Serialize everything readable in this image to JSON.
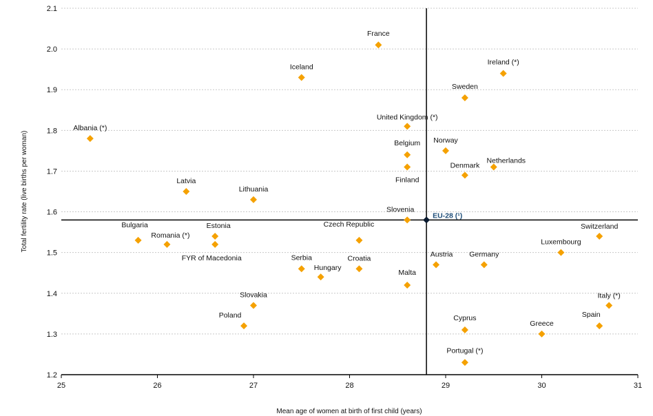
{
  "chart_data": {
    "type": "scatter",
    "title": "",
    "xlabel": "Mean age of women at birth of first child (years)",
    "ylabel": "Total fertility rate (live births per woman)",
    "xlim": [
      25,
      31
    ],
    "ylim": [
      1.2,
      2.1
    ],
    "x_ticks": [
      "25",
      "26",
      "27",
      "28",
      "29",
      "30",
      "31"
    ],
    "y_ticks": [
      "1.2",
      "1.3",
      "1.4",
      "1.5",
      "1.6",
      "1.7",
      "1.8",
      "1.9",
      "2.0",
      "2.1"
    ],
    "grid": "horizontal-dotted",
    "marker_color": "#f5a100",
    "reference": {
      "name": "EU-28 (¹)",
      "x": 28.8,
      "y": 1.58,
      "color": "#1f4e79"
    },
    "points": [
      {
        "name": "France",
        "x": 28.3,
        "y": 2.01
      },
      {
        "name": "Iceland",
        "x": 27.5,
        "y": 1.93
      },
      {
        "name": "Ireland (*)",
        "x": 29.6,
        "y": 1.94
      },
      {
        "name": "Sweden",
        "x": 29.2,
        "y": 1.88
      },
      {
        "name": "United Kingdom (*)",
        "x": 28.6,
        "y": 1.81
      },
      {
        "name": "Albania (*)",
        "x": 25.3,
        "y": 1.78
      },
      {
        "name": "Norway",
        "x": 29.0,
        "y": 1.75
      },
      {
        "name": "Belgium",
        "x": 28.6,
        "y": 1.74
      },
      {
        "name": "Finland",
        "x": 28.6,
        "y": 1.71
      },
      {
        "name": "Netherlands",
        "x": 29.5,
        "y": 1.71
      },
      {
        "name": "Denmark",
        "x": 29.2,
        "y": 1.69
      },
      {
        "name": "Latvia",
        "x": 26.3,
        "y": 1.65
      },
      {
        "name": "Lithuania",
        "x": 27.0,
        "y": 1.63
      },
      {
        "name": "Slovenia",
        "x": 28.6,
        "y": 1.58
      },
      {
        "name": "Switzerland",
        "x": 30.6,
        "y": 1.54
      },
      {
        "name": "Estonia",
        "x": 26.6,
        "y": 1.54
      },
      {
        "name": "Bulgaria",
        "x": 25.8,
        "y": 1.53
      },
      {
        "name": "Czech Republic",
        "x": 28.1,
        "y": 1.53
      },
      {
        "name": "Romania (*)",
        "x": 26.1,
        "y": 1.52
      },
      {
        "name": "FYR of Macedonia",
        "x": 26.6,
        "y": 1.52
      },
      {
        "name": "Luxembourg",
        "x": 30.2,
        "y": 1.5
      },
      {
        "name": "Austria",
        "x": 28.9,
        "y": 1.47
      },
      {
        "name": "Germany",
        "x": 29.4,
        "y": 1.47
      },
      {
        "name": "Serbia",
        "x": 27.5,
        "y": 1.46
      },
      {
        "name": "Croatia",
        "x": 28.1,
        "y": 1.46
      },
      {
        "name": "Hungary",
        "x": 27.7,
        "y": 1.44
      },
      {
        "name": "Malta",
        "x": 28.6,
        "y": 1.42
      },
      {
        "name": "Italy (*)",
        "x": 30.7,
        "y": 1.37
      },
      {
        "name": "Slovakia",
        "x": 27.0,
        "y": 1.37
      },
      {
        "name": "Spain",
        "x": 30.6,
        "y": 1.32
      },
      {
        "name": "Poland",
        "x": 26.9,
        "y": 1.32
      },
      {
        "name": "Cyprus",
        "x": 29.2,
        "y": 1.31
      },
      {
        "name": "Greece",
        "x": 30.0,
        "y": 1.3
      },
      {
        "name": "Portugal (*)",
        "x": 29.2,
        "y": 1.23
      }
    ]
  }
}
